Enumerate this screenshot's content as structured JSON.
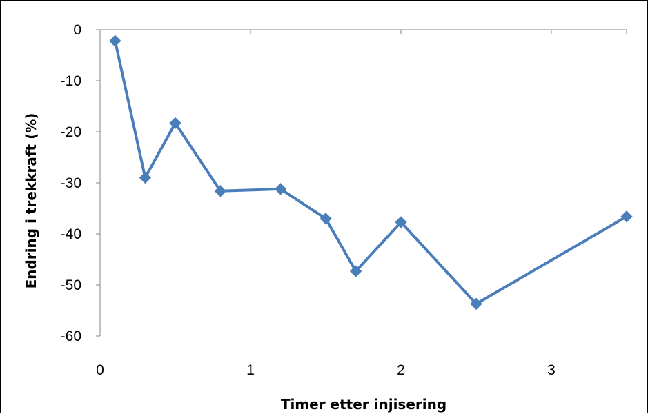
{
  "chart_data": {
    "type": "line",
    "title": "",
    "xlabel": "Timer etter injisering",
    "ylabel": "Endring i trekkraft (%)",
    "xlim": [
      0,
      3.5
    ],
    "ylim": [
      -60,
      0
    ],
    "x_ticks": [
      "0",
      "1",
      "2",
      "3"
    ],
    "y_ticks": [
      "0",
      "-10",
      "-20",
      "-30",
      "-40",
      "-50",
      "-60"
    ],
    "grid": false,
    "legend": "none",
    "series": [
      {
        "marker": "diamond",
        "color": "#4a7ebb",
        "points": [
          {
            "x": 0.1,
            "y": -2.2
          },
          {
            "x": 0.3,
            "y": -29.0
          },
          {
            "x": 0.5,
            "y": -18.3
          },
          {
            "x": 0.8,
            "y": -31.6
          },
          {
            "x": 1.2,
            "y": -31.2
          },
          {
            "x": 1.5,
            "y": -37.0
          },
          {
            "x": 1.7,
            "y": -47.3
          },
          {
            "x": 2.0,
            "y": -37.7
          },
          {
            "x": 2.5,
            "y": -53.7
          },
          {
            "x": 3.5,
            "y": -36.6
          }
        ]
      }
    ]
  }
}
